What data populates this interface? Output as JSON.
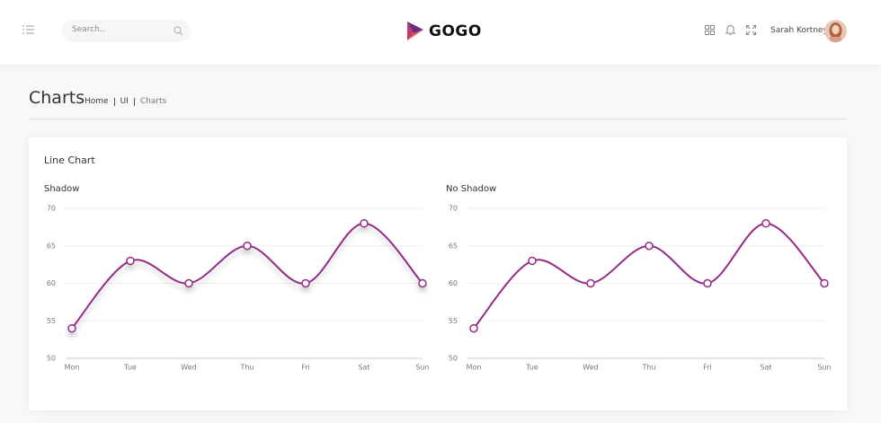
{
  "header": {
    "search_placeholder": "Search..",
    "logo": "GOGO",
    "user_name": "Sarah Kortney"
  },
  "page": {
    "title": "Charts",
    "breadcrumb": [
      "Home",
      "UI",
      "Charts"
    ]
  },
  "card": {
    "title": "Line Chart"
  },
  "chart_data": [
    {
      "type": "line",
      "title": "Shadow",
      "shadow": true,
      "color": "#922c88",
      "categories": [
        "Mon",
        "Tue",
        "Wed",
        "Thu",
        "Fri",
        "Sat",
        "Sun"
      ],
      "values": [
        54,
        63,
        60,
        65,
        60,
        68,
        60
      ],
      "ylim": [
        50,
        70
      ],
      "yticks": [
        50,
        55,
        60,
        65,
        70
      ],
      "grid": true
    },
    {
      "type": "line",
      "title": "No Shadow",
      "shadow": false,
      "color": "#922c88",
      "categories": [
        "Mon",
        "Tue",
        "Wed",
        "Thu",
        "Fri",
        "Sat",
        "Sun"
      ],
      "values": [
        54,
        63,
        60,
        65,
        60,
        68,
        60
      ],
      "ylim": [
        50,
        70
      ],
      "yticks": [
        50,
        55,
        60,
        65,
        70
      ],
      "grid": true
    }
  ]
}
